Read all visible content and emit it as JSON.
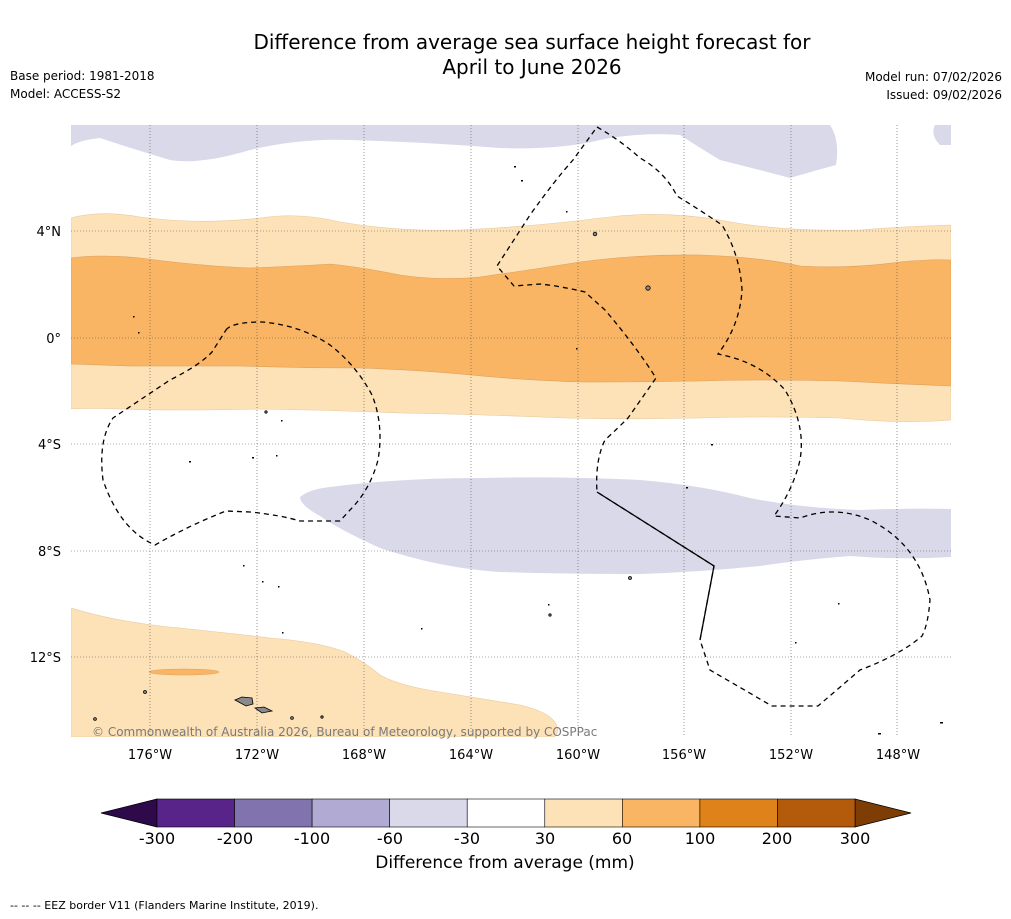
{
  "title_line1": "Difference from average sea surface height forecast for",
  "title_line2": "April to June 2026",
  "meta_left": [
    "Base period: 1981-2018",
    "Model: ACCESS-S2"
  ],
  "meta_right": [
    "Model run: 07/02/2026",
    "Issued: 09/02/2026"
  ],
  "lat_labels": [
    "4°N",
    "0°",
    "4°S",
    "8°S",
    "12°S"
  ],
  "lon_labels": [
    "176°W",
    "172°W",
    "168°W",
    "164°W",
    "160°W",
    "156°W",
    "152°W",
    "148°W"
  ],
  "copyright": "© Commonwealth of Australia 2026, Bureau of Meteorology, supported by COSPPac",
  "colorbar": {
    "label": "Difference from average (mm)",
    "ticks": [
      "-300",
      "-200",
      "-100",
      "-60",
      "-30",
      "30",
      "60",
      "100",
      "200",
      "300"
    ],
    "low_extend_color": "#2e0a4a",
    "colors": [
      "#58248a",
      "#8073ae",
      "#b1aad3",
      "#d9d9ea",
      "#ffffff",
      "#fde1b7",
      "#f9b563",
      "#e0821a",
      "#b45b0b"
    ],
    "high_extend_color": "#7d3d05"
  },
  "map_colors": {
    "lavender": "#d9d9ea",
    "light_orange": "#fde1b7",
    "orange": "#f9b563",
    "land_grey": "#8a8a8a"
  },
  "footnote": "--  --  -- EEZ border V11 (Flanders Marine Institute, 2019)."
}
